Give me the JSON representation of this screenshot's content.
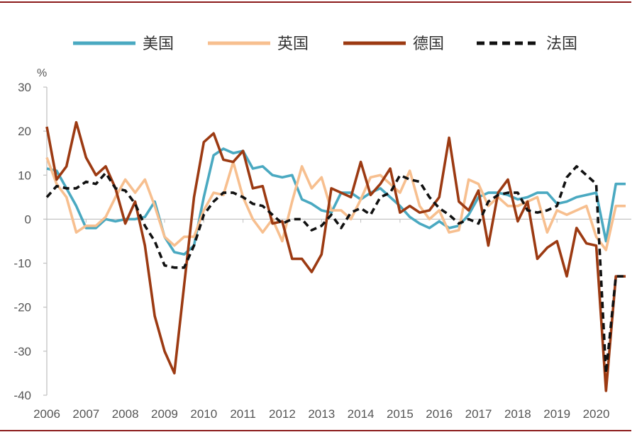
{
  "chart_data": {
    "type": "line",
    "unit": "%",
    "ylim": [
      -40,
      30
    ],
    "yticks": [
      30,
      20,
      10,
      0,
      -10,
      -20,
      -30,
      -40
    ],
    "xlim": [
      2006.0,
      2020.75
    ],
    "year_labels": [
      "2006",
      "2007",
      "2008",
      "2009",
      "2010",
      "2011",
      "2012",
      "2013",
      "2014",
      "2015",
      "2016",
      "2017",
      "2018",
      "2019",
      "2020"
    ],
    "legend_position": "top",
    "grid": false,
    "colors": {
      "frame_line": "#8b1a1a",
      "axis": "#bfbfbf"
    },
    "series": [
      {
        "name": "美国",
        "color": "#4aa9c1",
        "style": "solid",
        "x": [
          2006.0,
          2006.25,
          2006.5,
          2006.75,
          2007.0,
          2007.25,
          2007.5,
          2007.75,
          2008.0,
          2008.25,
          2008.5,
          2008.75,
          2009.0,
          2009.25,
          2009.5,
          2009.75,
          2010.0,
          2010.25,
          2010.5,
          2010.75,
          2011.0,
          2011.25,
          2011.5,
          2011.75,
          2012.0,
          2012.25,
          2012.5,
          2012.75,
          2013.0,
          2013.25,
          2013.5,
          2013.75,
          2014.0,
          2014.25,
          2014.5,
          2014.75,
          2015.0,
          2015.25,
          2015.5,
          2015.75,
          2016.0,
          2016.25,
          2016.5,
          2016.75,
          2017.0,
          2017.25,
          2017.5,
          2017.75,
          2018.0,
          2018.25,
          2018.5,
          2018.75,
          2019.0,
          2019.25,
          2019.5,
          2019.75,
          2020.0,
          2020.25,
          2020.5,
          2020.75
        ],
        "values": [
          11.5,
          11,
          7,
          3,
          -2,
          -2,
          0,
          -0.5,
          0,
          0,
          0.5,
          4,
          -4,
          -7.5,
          -8,
          -6,
          5,
          14.5,
          16,
          15,
          15.5,
          11.5,
          12,
          10,
          9.5,
          10,
          4.5,
          3.5,
          2,
          1.5,
          6,
          6,
          4.5,
          6,
          7,
          5,
          3,
          0.5,
          -1,
          -2,
          -0.5,
          -2,
          -1.5,
          1,
          5,
          6,
          6,
          5.5,
          4.5,
          5,
          6,
          6,
          3.5,
          4,
          5,
          5.5,
          6,
          -5,
          8,
          8
        ]
      },
      {
        "name": "英国",
        "color": "#f7bf8f",
        "style": "solid",
        "x": [
          2006.0,
          2006.25,
          2006.5,
          2006.75,
          2007.0,
          2007.25,
          2007.5,
          2007.75,
          2008.0,
          2008.25,
          2008.5,
          2008.75,
          2009.0,
          2009.25,
          2009.5,
          2009.75,
          2010.0,
          2010.25,
          2010.5,
          2010.75,
          2011.0,
          2011.25,
          2011.5,
          2011.75,
          2012.0,
          2012.25,
          2012.5,
          2012.75,
          2013.0,
          2013.25,
          2013.5,
          2013.75,
          2014.0,
          2014.25,
          2014.5,
          2014.75,
          2015.0,
          2015.25,
          2015.5,
          2015.75,
          2016.0,
          2016.25,
          2016.5,
          2016.75,
          2017.0,
          2017.25,
          2017.5,
          2017.75,
          2018.0,
          2018.25,
          2018.5,
          2018.75,
          2019.0,
          2019.25,
          2019.5,
          2019.75,
          2020.0,
          2020.25,
          2020.5,
          2020.75
        ],
        "values": [
          14,
          8,
          5,
          -3,
          -1.5,
          -1.5,
          0.5,
          5,
          9,
          6,
          9,
          3,
          -4,
          -6,
          -4,
          -4,
          2,
          6,
          5.5,
          13,
          5,
          0,
          -3,
          0,
          -5,
          4,
          12,
          7,
          9.5,
          2,
          2,
          0,
          4.5,
          9.5,
          10,
          8,
          6,
          11,
          3,
          0,
          2,
          -3,
          -2.5,
          9,
          8,
          3,
          5,
          3,
          3,
          4,
          5,
          -3,
          2,
          1,
          2,
          3,
          -4,
          -7,
          3,
          3
        ]
      },
      {
        "name": "德国",
        "color": "#9c3a12",
        "style": "solid",
        "x": [
          2006.0,
          2006.25,
          2006.5,
          2006.75,
          2007.0,
          2007.25,
          2007.5,
          2007.75,
          2008.0,
          2008.25,
          2008.5,
          2008.75,
          2009.0,
          2009.25,
          2009.5,
          2009.75,
          2010.0,
          2010.25,
          2010.5,
          2010.75,
          2011.0,
          2011.25,
          2011.5,
          2011.75,
          2012.0,
          2012.25,
          2012.5,
          2012.75,
          2013.0,
          2013.25,
          2013.5,
          2013.75,
          2014.0,
          2014.25,
          2014.5,
          2014.75,
          2015.0,
          2015.25,
          2015.5,
          2015.75,
          2016.0,
          2016.25,
          2016.5,
          2016.75,
          2017.0,
          2017.25,
          2017.5,
          2017.75,
          2018.0,
          2018.25,
          2018.5,
          2018.75,
          2019.0,
          2019.25,
          2019.5,
          2019.75,
          2020.0,
          2020.25,
          2020.5,
          2020.75
        ],
        "values": [
          21,
          9,
          12,
          22,
          14,
          10,
          12,
          7,
          -1,
          4,
          -6,
          -22,
          -30,
          -35,
          -15,
          5,
          17.5,
          19.5,
          13.5,
          13,
          15.5,
          7,
          7.5,
          -1,
          -0.5,
          -9,
          -9,
          -12,
          -8,
          7,
          6,
          5,
          13,
          5.5,
          8,
          11.5,
          1.5,
          3,
          1.5,
          2,
          5,
          18.5,
          4,
          2,
          6.5,
          -6,
          6,
          9,
          -0.5,
          4,
          -9,
          -6.5,
          -5,
          -13,
          -2,
          -5.5,
          -6,
          -39,
          -13,
          -13
        ]
      },
      {
        "name": "法国",
        "color": "#111111",
        "style": "dashed",
        "x": [
          2006.0,
          2006.25,
          2006.5,
          2006.75,
          2007.0,
          2007.25,
          2007.5,
          2007.75,
          2008.0,
          2008.25,
          2008.5,
          2008.75,
          2009.0,
          2009.25,
          2009.5,
          2009.75,
          2010.0,
          2010.25,
          2010.5,
          2010.75,
          2011.0,
          2011.25,
          2011.5,
          2011.75,
          2012.0,
          2012.25,
          2012.5,
          2012.75,
          2013.0,
          2013.25,
          2013.5,
          2013.75,
          2014.0,
          2014.25,
          2014.5,
          2014.75,
          2015.0,
          2015.25,
          2015.5,
          2015.75,
          2016.0,
          2016.25,
          2016.5,
          2016.75,
          2017.0,
          2017.25,
          2017.5,
          2017.75,
          2018.0,
          2018.25,
          2018.5,
          2018.75,
          2019.0,
          2019.25,
          2019.5,
          2019.75,
          2020.0,
          2020.25,
          2020.5,
          2020.75
        ],
        "values": [
          5,
          7.5,
          7,
          7,
          8.5,
          8,
          10.5,
          7,
          6.5,
          3.5,
          -1.5,
          -5,
          -10.5,
          -11,
          -11,
          -6,
          1,
          4,
          6,
          6,
          5,
          3.5,
          3,
          1,
          -1,
          0,
          0,
          -2.5,
          -1.5,
          1,
          -2,
          1.5,
          2.5,
          1,
          5,
          6,
          10,
          9,
          8.5,
          5,
          2.5,
          1,
          -1,
          0,
          -1,
          4,
          5.5,
          6,
          6,
          2,
          1.5,
          2,
          3,
          9.5,
          12,
          10,
          8,
          -35,
          -13,
          -13
        ]
      }
    ]
  }
}
